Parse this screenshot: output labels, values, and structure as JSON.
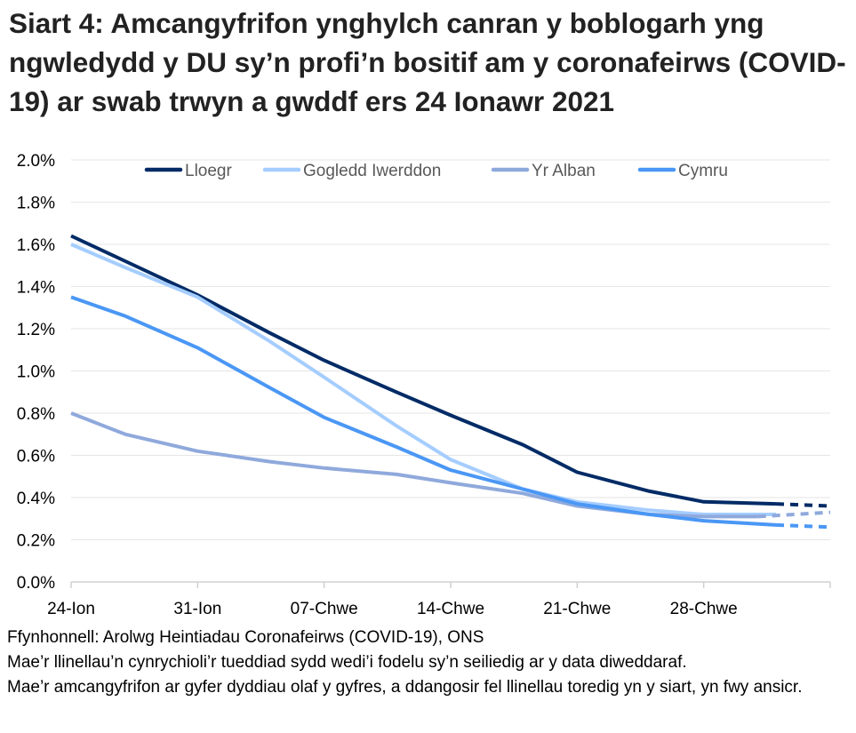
{
  "title": "Siart 4: Amcangyfrifon ynghylch canran y boblogarh yng ngwledydd y DU sy’n profi’n bositif am y coronafeirws (COVID-19) ar swab trwyn a gwddf ers 24 Ionawr 2021",
  "notes": [
    "Ffynhonnell: Arolwg Heintiadau Coronafeirws (COVID-19), ONS",
    "Mae’r llinellau’n cynrychioli’r tueddiad sydd wedi’i fodelu sy’n seiliedig ar y data diweddaraf.",
    "Mae’r amcangyfrifon ar gyfer dyddiau olaf y gyfres, a ddangosir fel llinellau toredig yn y siart, yn fwy ansicr."
  ],
  "chart_data": {
    "type": "line",
    "xlim": [
      "2021-01-24",
      "2021-03-07"
    ],
    "ylim": [
      0,
      2.0
    ],
    "y_ticks": [
      "0.0%",
      "0.2%",
      "0.4%",
      "0.6%",
      "0.8%",
      "1.0%",
      "1.2%",
      "1.4%",
      "1.6%",
      "1.8%",
      "2.0%"
    ],
    "x_ticks": [
      {
        "date": "2021-01-24",
        "label": "24-Ion"
      },
      {
        "date": "2021-01-31",
        "label": "31-Ion"
      },
      {
        "date": "2021-02-07",
        "label": "07-Chwe"
      },
      {
        "date": "2021-02-14",
        "label": "14-Chwe"
      },
      {
        "date": "2021-02-21",
        "label": "21-Chwe"
      },
      {
        "date": "2021-02-28",
        "label": "28-Chwe"
      }
    ],
    "grid": true,
    "legend": "top",
    "unit": "%",
    "series": [
      {
        "name": "Lloegr",
        "color": "#002B66",
        "x": [
          "2021-01-24",
          "2021-01-27",
          "2021-01-31",
          "2021-02-04",
          "2021-02-07",
          "2021-02-11",
          "2021-02-14",
          "2021-02-18",
          "2021-02-21",
          "2021-02-25",
          "2021-02-28",
          "2021-03-04",
          "2021-03-07"
        ],
        "values": [
          1.64,
          1.52,
          1.36,
          1.18,
          1.05,
          0.9,
          0.79,
          0.65,
          0.52,
          0.43,
          0.38,
          0.37,
          0.36
        ],
        "dashed_from": "2021-03-04"
      },
      {
        "name": "Gogledd Iwerddon",
        "color": "#A5CDFF",
        "x": [
          "2021-01-24",
          "2021-01-27",
          "2021-01-31",
          "2021-02-04",
          "2021-02-07",
          "2021-02-11",
          "2021-02-14",
          "2021-02-18",
          "2021-02-21",
          "2021-02-25",
          "2021-02-28",
          "2021-03-04"
        ],
        "values": [
          1.6,
          1.49,
          1.35,
          1.14,
          0.97,
          0.74,
          0.58,
          0.44,
          0.38,
          0.34,
          0.32,
          0.32
        ],
        "dashed_from": null
      },
      {
        "name": "Yr Alban",
        "color": "#8FA9DC",
        "x": [
          "2021-01-24",
          "2021-01-27",
          "2021-01-31",
          "2021-02-04",
          "2021-02-07",
          "2021-02-11",
          "2021-02-14",
          "2021-02-18",
          "2021-02-21",
          "2021-02-25",
          "2021-02-28",
          "2021-03-03",
          "2021-03-07"
        ],
        "values": [
          0.8,
          0.7,
          0.62,
          0.57,
          0.54,
          0.51,
          0.47,
          0.42,
          0.36,
          0.32,
          0.31,
          0.31,
          0.33
        ],
        "dashed_from": "2021-03-03"
      },
      {
        "name": "Cymru",
        "color": "#4A97F5",
        "x": [
          "2021-01-24",
          "2021-01-27",
          "2021-01-31",
          "2021-02-04",
          "2021-02-07",
          "2021-02-11",
          "2021-02-14",
          "2021-02-18",
          "2021-02-21",
          "2021-02-25",
          "2021-02-28",
          "2021-03-04",
          "2021-03-07"
        ],
        "values": [
          1.35,
          1.26,
          1.11,
          0.92,
          0.78,
          0.64,
          0.53,
          0.44,
          0.37,
          0.32,
          0.29,
          0.27,
          0.26
        ],
        "dashed_from": "2021-03-04"
      }
    ]
  }
}
